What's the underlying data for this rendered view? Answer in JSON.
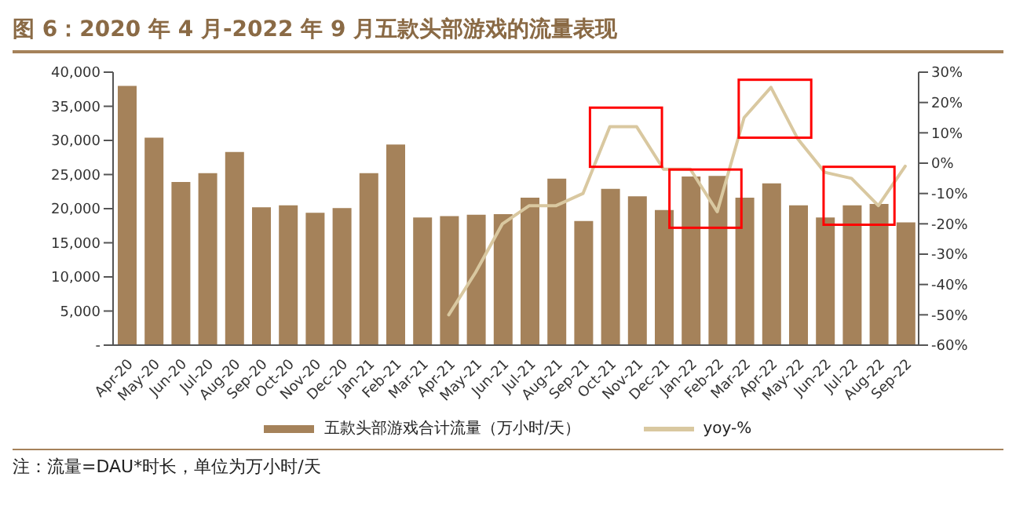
{
  "chart_data": {
    "type": "bar",
    "title": "图 6：2020 年 4 月-2022 年 9 月五款头部游戏的流量表现",
    "categories": [
      "Apr-20",
      "May-20",
      "Jun-20",
      "Jul-20",
      "Aug-20",
      "Sep-20",
      "Oct-20",
      "Nov-20",
      "Dec-20",
      "Jan-21",
      "Feb-21",
      "Mar-21",
      "Apr-21",
      "May-21",
      "Jun-21",
      "Jul-21",
      "Aug-21",
      "Sep-21",
      "Oct-21",
      "Nov-21",
      "Dec-21",
      "Jan-22",
      "Feb-22",
      "Mar-22",
      "Apr-22",
      "May-22",
      "Jun-22",
      "Jul-22",
      "Aug-22",
      "Sep-22"
    ],
    "series": [
      {
        "name": "五款头部游戏合计流量（万小时/天）",
        "color": "#a5825a",
        "values": [
          38000,
          30400,
          23900,
          25200,
          28300,
          20200,
          20500,
          19400,
          20100,
          25200,
          29400,
          18700,
          18900,
          19100,
          19200,
          21600,
          24400,
          18200,
          22900,
          21800,
          19800,
          24700,
          24800,
          21600,
          23700,
          20500,
          18700,
          20500,
          20700,
          18000
        ]
      },
      {
        "name": "yoy-%",
        "type": "line",
        "axis": "y2",
        "color": "#d9c8a0",
        "values": [
          null,
          null,
          null,
          null,
          null,
          null,
          null,
          null,
          null,
          null,
          null,
          null,
          -50,
          -36,
          -20,
          -14,
          -14,
          -10,
          12,
          12,
          -2,
          -2,
          -16,
          15,
          25,
          8,
          -3,
          -5,
          -14,
          -1
        ]
      }
    ],
    "ylim": [
      0,
      40000
    ],
    "yticks": [
      {
        "value": 0,
        "label": "-"
      },
      {
        "value": 5000,
        "label": "5,000"
      },
      {
        "value": 10000,
        "label": "10,000"
      },
      {
        "value": 15000,
        "label": "15,000"
      },
      {
        "value": 20000,
        "label": "20,000"
      },
      {
        "value": 25000,
        "label": "25,000"
      },
      {
        "value": 30000,
        "label": "30,000"
      },
      {
        "value": 35000,
        "label": "35,000"
      },
      {
        "value": 40000,
        "label": "40,000"
      }
    ],
    "y2lim": [
      -60,
      30
    ],
    "y2ticks": [
      {
        "value": -60,
        "label": "-60%"
      },
      {
        "value": -50,
        "label": "-50%"
      },
      {
        "value": -40,
        "label": "-40%"
      },
      {
        "value": -30,
        "label": "-30%"
      },
      {
        "value": -20,
        "label": "-20%"
      },
      {
        "value": -10,
        "label": "-10%"
      },
      {
        "value": 0,
        "label": "0%"
      },
      {
        "value": 10,
        "label": "10%"
      },
      {
        "value": 20,
        "label": "20%"
      },
      {
        "value": 30,
        "label": "30%"
      }
    ],
    "legend": "bottom",
    "grid": false,
    "marker": "none",
    "line_style": "solid",
    "annotations": [
      "注：流量=DAU*时长，单位为万小时/天"
    ]
  }
}
